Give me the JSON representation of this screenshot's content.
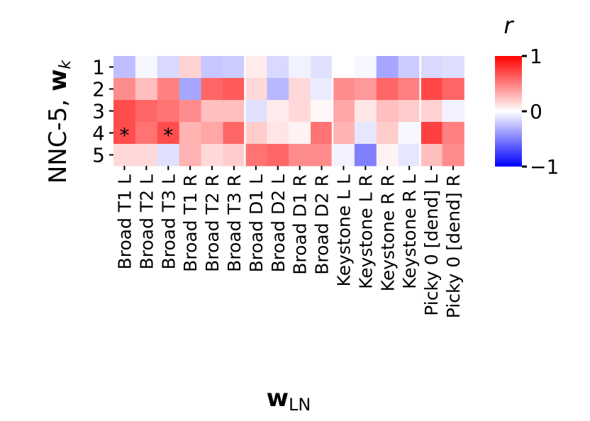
{
  "chart_data": {
    "type": "heatmap",
    "ylabel_parts": {
      "prefix": "NNC-5, ",
      "bold": "w",
      "sub": "k"
    },
    "xlabel_parts": {
      "bold": "w",
      "sub": "LN"
    },
    "colorbar": {
      "label": "r",
      "vmin": -1,
      "vmax": 1,
      "ticks": [
        {
          "value": 1,
          "label": "1"
        },
        {
          "value": 0,
          "label": "0"
        },
        {
          "value": -1,
          "label": "−1"
        }
      ],
      "colors": {
        "low": "#0000ff",
        "mid": "#ffffff",
        "high": "#ff0000"
      }
    },
    "rows": [
      "1",
      "2",
      "3",
      "4",
      "5"
    ],
    "columns": [
      "Broad T1 L",
      "Broad T2 L",
      "Broad T3 L",
      "Broad T1 R",
      "Broad T2 R",
      "Broad T3 R",
      "Broad D1 L",
      "Broad D2 L",
      "Broad D1 R",
      "Broad D2 R",
      "Keystone L L",
      "Keystone L R",
      "Keystone R R",
      "Keystone R L",
      "Picky 0 [dend] L",
      "Picky 0 [dend] R"
    ],
    "groups_after_column": [
      5,
      9,
      13
    ],
    "values": [
      [
        -0.25,
        -0.03,
        -0.15,
        0.18,
        -0.22,
        -0.2,
        0.08,
        -0.15,
        -0.05,
        -0.12,
        0.0,
        -0.03,
        -0.35,
        -0.2,
        -0.15,
        -0.13
      ],
      [
        0.45,
        0.25,
        0.5,
        -0.35,
        0.6,
        0.65,
        0.15,
        -0.28,
        0.15,
        -0.08,
        0.45,
        0.4,
        0.6,
        0.5,
        0.72,
        0.6
      ],
      [
        0.7,
        0.6,
        0.55,
        0.45,
        0.25,
        0.25,
        -0.12,
        0.08,
        0.15,
        0.03,
        0.35,
        0.1,
        0.25,
        0.2,
        0.18,
        -0.05
      ],
      [
        0.7,
        0.55,
        0.7,
        0.3,
        0.35,
        0.6,
        0.2,
        0.1,
        0.05,
        0.55,
        0.3,
        -0.1,
        0.2,
        -0.03,
        0.75,
        0.5
      ],
      [
        0.15,
        0.15,
        -0.12,
        0.3,
        0.15,
        0.2,
        0.55,
        0.6,
        0.45,
        0.45,
        -0.05,
        -0.5,
        0.05,
        -0.1,
        0.25,
        0.45
      ]
    ],
    "annotations": [
      {
        "row": 3,
        "col": 0,
        "text": "*"
      },
      {
        "row": 3,
        "col": 2,
        "text": "*"
      }
    ]
  }
}
